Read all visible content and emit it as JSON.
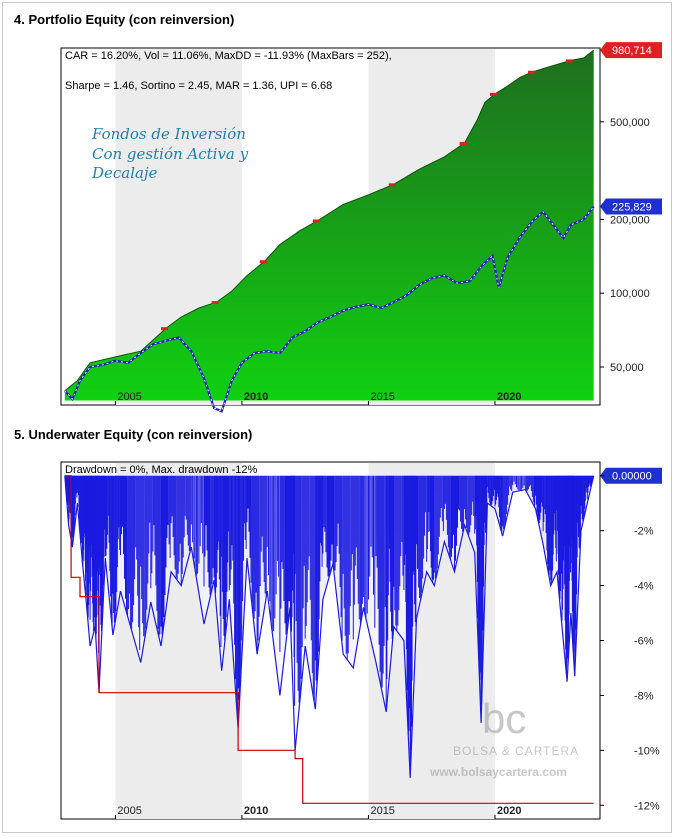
{
  "sections": {
    "equity_title": "4. Portfolio Equity (con reinversion)",
    "underwater_title": "5. Underwater Equity (con reinversion)"
  },
  "equity_stats": {
    "line1": "CAR = 16.20%, Vol = 11.06%, MaxDD = -11.93% (MaxBars = 252),",
    "line2": "Sharpe = 1.46, Sortino = 2.45, MAR = 1.36, UPI = 6.68"
  },
  "annotation": {
    "line1": "Fondos de Inversión",
    "line2": "Con gestión Activa y",
    "line3": "Decalaje"
  },
  "underwater_stats": "Drawdown = 0%, Max. drawdown -12%",
  "watermark": {
    "logo": "bc",
    "name": "BOLSA & CARTERA",
    "url": "www.bolsaycartera.com"
  },
  "colors": {
    "equity_fill_top": "#1f6e1f",
    "equity_fill_bottom": "#10d010",
    "benchmark_line": "#2020c0",
    "last_value_strategy": "#e02020",
    "last_value_benchmark": "#2030d0",
    "drawdown_line": "#1a1ae0",
    "max_drawdown_line": "#cc0000"
  },
  "chart_data": [
    {
      "type": "area",
      "title": "4. Portfolio Equity (con reinversion)",
      "y_scale": "log",
      "ylim": [
        35000,
        1000000
      ],
      "y_ticks": [
        {
          "label": "50,000",
          "value": 50000
        },
        {
          "label": "100,000",
          "value": 100000
        },
        {
          "label": "200,000",
          "value": 200000
        },
        {
          "label": "500,000",
          "value": 500000
        }
      ],
      "x_ticks": [
        {
          "label": "2005",
          "value": 2005.0,
          "bold": false
        },
        {
          "label": "2010",
          "value": 2010.0,
          "bold": true
        },
        {
          "label": "2015",
          "value": 2015.0,
          "bold": false
        },
        {
          "label": "2020",
          "value": 2020.0,
          "bold": true
        }
      ],
      "xlim": [
        2002.85,
        2024.15
      ],
      "shaded_years": [
        [
          2005,
          2010
        ],
        [
          2015,
          2020
        ]
      ],
      "last_values": {
        "strategy": "980,714",
        "benchmark": "225,829"
      },
      "series": [
        {
          "name": "",
          "kind": "strategy-equity",
          "points": [
            [
              2003.0,
              40000
            ],
            [
              2003.5,
              44000
            ],
            [
              2004.0,
              52000
            ],
            [
              2005.0,
              55000
            ],
            [
              2006.0,
              58000
            ],
            [
              2006.6,
              66000
            ],
            [
              2007.0,
              72000
            ],
            [
              2007.6,
              80000
            ],
            [
              2008.3,
              87000
            ],
            [
              2009.0,
              92000
            ],
            [
              2009.6,
              102000
            ],
            [
              2010.2,
              118000
            ],
            [
              2010.9,
              135000
            ],
            [
              2011.5,
              158000
            ],
            [
              2012.3,
              180000
            ],
            [
              2013.0,
              198000
            ],
            [
              2014.0,
              230000
            ],
            [
              2015.0,
              252000
            ],
            [
              2016.0,
              278000
            ],
            [
              2017.0,
              320000
            ],
            [
              2018.0,
              360000
            ],
            [
              2018.8,
              410000
            ],
            [
              2019.3,
              510000
            ],
            [
              2019.6,
              600000
            ],
            [
              2020.0,
              650000
            ],
            [
              2020.5,
              700000
            ],
            [
              2021.0,
              760000
            ],
            [
              2021.5,
              800000
            ],
            [
              2022.0,
              830000
            ],
            [
              2022.5,
              860000
            ],
            [
              2023.0,
              890000
            ],
            [
              2023.5,
              910000
            ],
            [
              2023.9,
              980714
            ]
          ]
        },
        {
          "name": "",
          "kind": "benchmark",
          "points": [
            [
              2003.0,
              40000
            ],
            [
              2003.3,
              37000
            ],
            [
              2003.6,
              44000
            ],
            [
              2004.0,
              50000
            ],
            [
              2004.5,
              51000
            ],
            [
              2005.0,
              53000
            ],
            [
              2005.5,
              52000
            ],
            [
              2006.0,
              57000
            ],
            [
              2006.5,
              62000
            ],
            [
              2007.0,
              64000
            ],
            [
              2007.5,
              66000
            ],
            [
              2008.0,
              58000
            ],
            [
              2008.5,
              45000
            ],
            [
              2008.9,
              34000
            ],
            [
              2009.2,
              33000
            ],
            [
              2009.6,
              44000
            ],
            [
              2010.0,
              52000
            ],
            [
              2010.5,
              57000
            ],
            [
              2011.0,
              58000
            ],
            [
              2011.5,
              57000
            ],
            [
              2012.0,
              66000
            ],
            [
              2012.5,
              70000
            ],
            [
              2013.0,
              76000
            ],
            [
              2013.5,
              80000
            ],
            [
              2014.0,
              85000
            ],
            [
              2014.5,
              88000
            ],
            [
              2015.0,
              90000
            ],
            [
              2015.5,
              87000
            ],
            [
              2016.0,
              92000
            ],
            [
              2016.5,
              98000
            ],
            [
              2017.0,
              108000
            ],
            [
              2017.5,
              115000
            ],
            [
              2018.0,
              118000
            ],
            [
              2018.5,
              110000
            ],
            [
              2019.0,
              112000
            ],
            [
              2019.5,
              130000
            ],
            [
              2019.9,
              142000
            ],
            [
              2020.15,
              105000
            ],
            [
              2020.5,
              140000
            ],
            [
              2021.0,
              170000
            ],
            [
              2021.5,
              198000
            ],
            [
              2021.9,
              215000
            ],
            [
              2022.3,
              190000
            ],
            [
              2022.7,
              168000
            ],
            [
              2023.0,
              190000
            ],
            [
              2023.5,
              200000
            ],
            [
              2023.9,
              225829
            ]
          ]
        }
      ]
    },
    {
      "type": "area",
      "title": "5. Underwater Equity (con reinversion)",
      "ylim": [
        -12.5,
        0.5
      ],
      "y_ticks": [
        {
          "label": "0.00000",
          "value": 0
        },
        {
          "label": "-2%",
          "value": -2
        },
        {
          "label": "-4%",
          "value": -4
        },
        {
          "label": "-6%",
          "value": -6
        },
        {
          "label": "-8%",
          "value": -8
        },
        {
          "label": "-10%",
          "value": -10
        },
        {
          "label": "-12%",
          "value": -12
        }
      ],
      "x_ticks": [
        {
          "label": "2005",
          "value": 2005.0,
          "bold": false
        },
        {
          "label": "2010",
          "value": 2010.0,
          "bold": true
        },
        {
          "label": "2015",
          "value": 2015.0,
          "bold": false
        },
        {
          "label": "2020",
          "value": 2020.0,
          "bold": true
        }
      ],
      "xlim": [
        2002.85,
        2024.15
      ],
      "shaded_years": [
        [
          2005,
          2010
        ],
        [
          2015,
          2020
        ]
      ],
      "series": [
        {
          "name": "",
          "kind": "drawdown",
          "points": [
            [
              2003.0,
              0
            ],
            [
              2003.15,
              -1.8
            ],
            [
              2003.3,
              -2.6
            ],
            [
              2003.5,
              -1.0
            ],
            [
              2003.7,
              -3.2
            ],
            [
              2003.85,
              -4.6
            ],
            [
              2004.0,
              -6.2
            ],
            [
              2004.2,
              -5.5
            ],
            [
              2004.35,
              -7.9
            ],
            [
              2004.6,
              -3.0
            ],
            [
              2004.9,
              -5.8
            ],
            [
              2005.2,
              -4.2
            ],
            [
              2005.6,
              -5.5
            ],
            [
              2006.0,
              -6.8
            ],
            [
              2006.4,
              -4.6
            ],
            [
              2006.8,
              -6.2
            ],
            [
              2007.2,
              -3.5
            ],
            [
              2007.6,
              -4.0
            ],
            [
              2008.0,
              -2.6
            ],
            [
              2008.5,
              -5.4
            ],
            [
              2008.9,
              -3.8
            ],
            [
              2009.2,
              -7.1
            ],
            [
              2009.5,
              -4.5
            ],
            [
              2009.85,
              -9.2
            ],
            [
              2010.2,
              -3.0
            ],
            [
              2010.6,
              -6.5
            ],
            [
              2011.0,
              -4.2
            ],
            [
              2011.5,
              -8.0
            ],
            [
              2011.9,
              -4.8
            ],
            [
              2012.1,
              -10.0
            ],
            [
              2012.5,
              -6.2
            ],
            [
              2012.9,
              -8.5
            ],
            [
              2013.2,
              -4.5
            ],
            [
              2013.6,
              -3.2
            ],
            [
              2014.0,
              -6.5
            ],
            [
              2014.4,
              -7.0
            ],
            [
              2014.8,
              -4.8
            ],
            [
              2015.3,
              -6.8
            ],
            [
              2015.7,
              -8.6
            ],
            [
              2016.0,
              -5.5
            ],
            [
              2016.4,
              -6.0
            ],
            [
              2016.65,
              -11.0
            ],
            [
              2016.9,
              -5.2
            ],
            [
              2017.3,
              -3.5
            ],
            [
              2017.6,
              -4.0
            ],
            [
              2018.0,
              -2.4
            ],
            [
              2018.4,
              -3.5
            ],
            [
              2018.8,
              -1.8
            ],
            [
              2019.2,
              -2.8
            ],
            [
              2019.45,
              -9.0
            ],
            [
              2019.7,
              -1.0
            ],
            [
              2020.0,
              -1.2
            ],
            [
              2020.3,
              -2.2
            ],
            [
              2020.7,
              -0.6
            ],
            [
              2021.2,
              -0.5
            ],
            [
              2021.6,
              -1.2
            ],
            [
              2021.9,
              -2.5
            ],
            [
              2022.2,
              -4.0
            ],
            [
              2022.45,
              -3.5
            ],
            [
              2022.65,
              -5.5
            ],
            [
              2022.85,
              -7.5
            ],
            [
              2023.0,
              -5.0
            ],
            [
              2023.15,
              -7.3
            ],
            [
              2023.4,
              -2.0
            ],
            [
              2023.65,
              -1.0
            ],
            [
              2023.9,
              0
            ]
          ]
        },
        {
          "name": "",
          "kind": "max-drawdown",
          "points": [
            [
              2003.0,
              0
            ],
            [
              2003.25,
              -3.7
            ],
            [
              2003.6,
              -4.4
            ],
            [
              2004.35,
              -7.9
            ],
            [
              2009.85,
              -10.0
            ],
            [
              2012.1,
              -10.3
            ],
            [
              2012.4,
              -11.93
            ],
            [
              2023.9,
              -11.93
            ]
          ]
        }
      ]
    }
  ]
}
